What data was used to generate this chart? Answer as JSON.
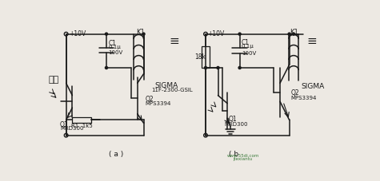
{
  "bg_color": "#ede9e3",
  "line_color": "#1a1a1a",
  "fig_width": 4.75,
  "fig_height": 2.27,
  "label_a": "( a )",
  "label_b": "( b",
  "wm1": "www.55di.com",
  "wm2": "jtexiantu",
  "wm_color": "#3a7a3a",
  "wm_color2": "#cc2222"
}
